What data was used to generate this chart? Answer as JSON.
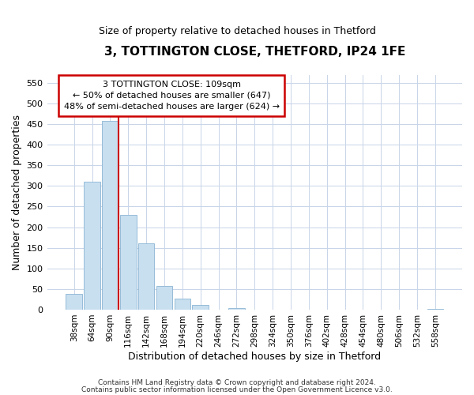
{
  "title": "3, TOTTINGTON CLOSE, THETFORD, IP24 1FE",
  "subtitle": "Size of property relative to detached houses in Thetford",
  "xlabel": "Distribution of detached houses by size in Thetford",
  "ylabel": "Number of detached properties",
  "footer_line1": "Contains HM Land Registry data © Crown copyright and database right 2024.",
  "footer_line2": "Contains public sector information licensed under the Open Government Licence v3.0.",
  "bar_labels": [
    "38sqm",
    "64sqm",
    "90sqm",
    "116sqm",
    "142sqm",
    "168sqm",
    "194sqm",
    "220sqm",
    "246sqm",
    "272sqm",
    "298sqm",
    "324sqm",
    "350sqm",
    "376sqm",
    "402sqm",
    "428sqm",
    "454sqm",
    "480sqm",
    "506sqm",
    "532sqm",
    "558sqm"
  ],
  "bar_values": [
    38,
    311,
    457,
    229,
    160,
    57,
    26,
    12,
    0,
    3,
    0,
    0,
    0,
    0,
    0,
    0,
    0,
    0,
    0,
    0,
    2
  ],
  "bar_color": "#c8dff0",
  "bar_edge_color": "#8ab4d4",
  "marker_color": "#cc0000",
  "ylim_max": 570,
  "yticks": [
    0,
    50,
    100,
    150,
    200,
    250,
    300,
    350,
    400,
    450,
    500,
    550
  ],
  "annotation_title": "3 TOTTINGTON CLOSE: 109sqm",
  "annotation_line1": "← 50% of detached houses are smaller (647)",
  "annotation_line2": "48% of semi-detached houses are larger (624) →",
  "annotation_box_color": "#ffffff",
  "annotation_box_edge": "#cc0000",
  "background_color": "#ffffff",
  "grid_color": "#c8d4e8",
  "title_fontsize": 11,
  "subtitle_fontsize": 9,
  "xlabel_fontsize": 9,
  "ylabel_fontsize": 9,
  "tick_fontsize": 8,
  "xtick_fontsize": 7.5,
  "ann_fontsize": 8,
  "footer_fontsize": 6.5
}
